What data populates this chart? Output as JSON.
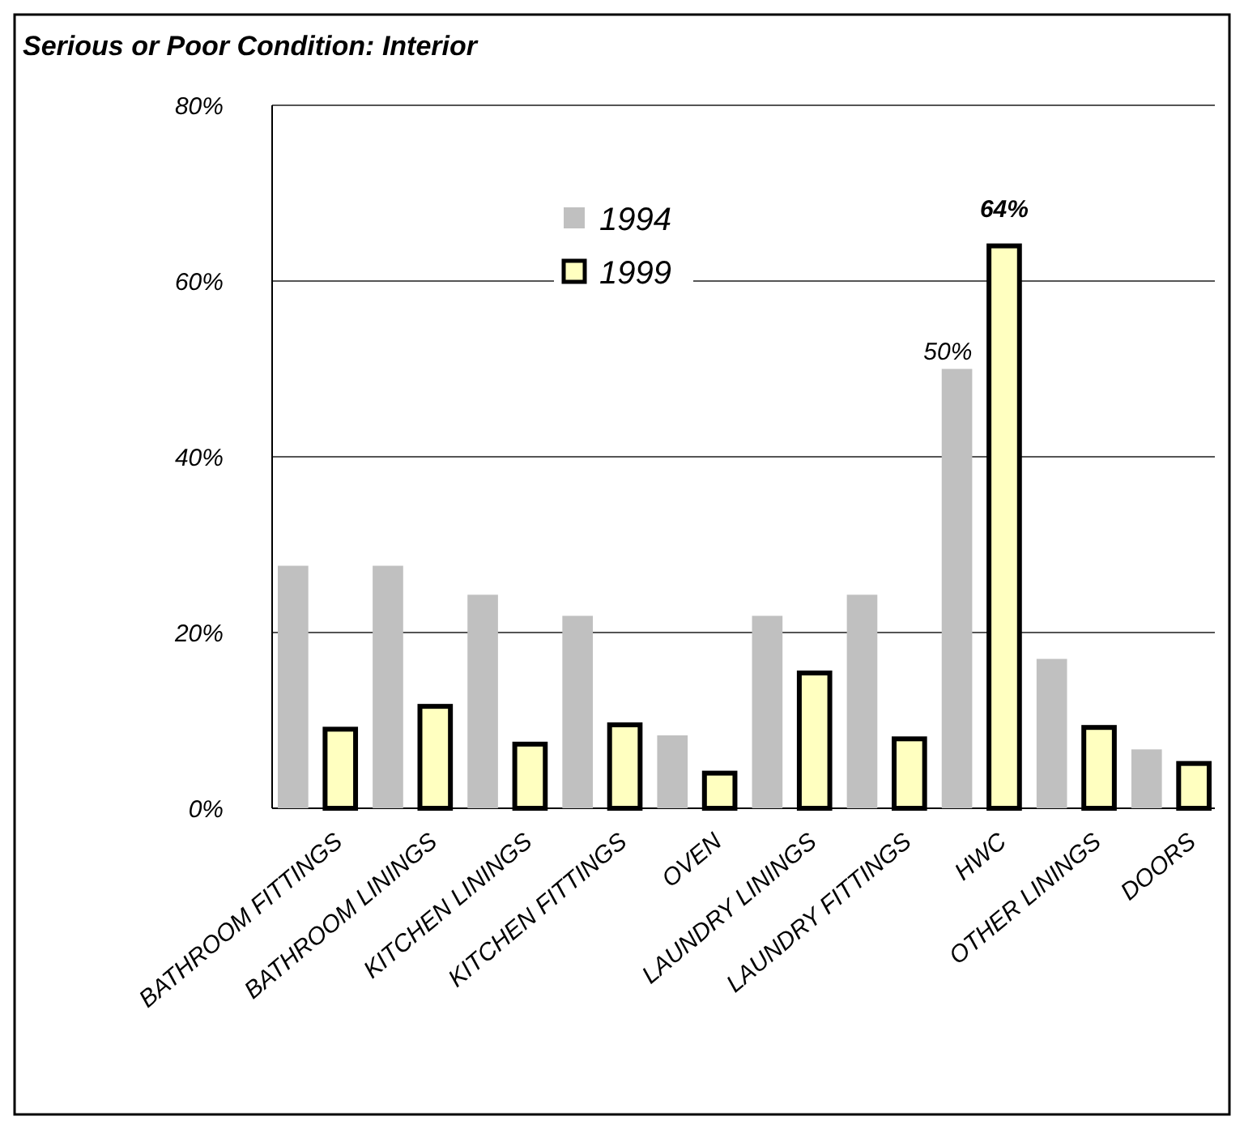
{
  "chart_data": {
    "type": "bar",
    "title": "Serious or Poor Condition: Interior",
    "categories": [
      "BATHROOM FITTINGS",
      "BATHROOM LININGS",
      "KITCHEN LININGS",
      "KITCHEN FITTINGS",
      "OVEN",
      "LAUNDRY LININGS",
      "LAUNDRY FITTINGS",
      "HWC",
      "OTHER LININGS",
      "DOORS"
    ],
    "series": [
      {
        "name": "1994",
        "color": "#c0c0c0",
        "values": [
          27.6,
          27.6,
          24.3,
          21.9,
          8.3,
          21.9,
          24.3,
          50,
          17.0,
          6.7
        ],
        "value_labels": [
          null,
          null,
          null,
          null,
          null,
          null,
          null,
          "50%",
          null,
          null
        ]
      },
      {
        "name": "1999",
        "color": "#ffffc0",
        "values": [
          9.0,
          11.6,
          7.3,
          9.5,
          4.0,
          15.4,
          7.9,
          64,
          9.2,
          5.1
        ],
        "value_labels": [
          null,
          null,
          null,
          null,
          null,
          null,
          null,
          "64%",
          null,
          null
        ]
      }
    ],
    "ylim": [
      0,
      80
    ],
    "yticks": [
      {
        "value": 0,
        "label": "0%"
      },
      {
        "value": 20,
        "label": "20%"
      },
      {
        "value": 40,
        "label": "40%"
      },
      {
        "value": 60,
        "label": "60%"
      },
      {
        "value": 80,
        "label": "80%"
      }
    ],
    "grid": "y",
    "legend": "top"
  }
}
